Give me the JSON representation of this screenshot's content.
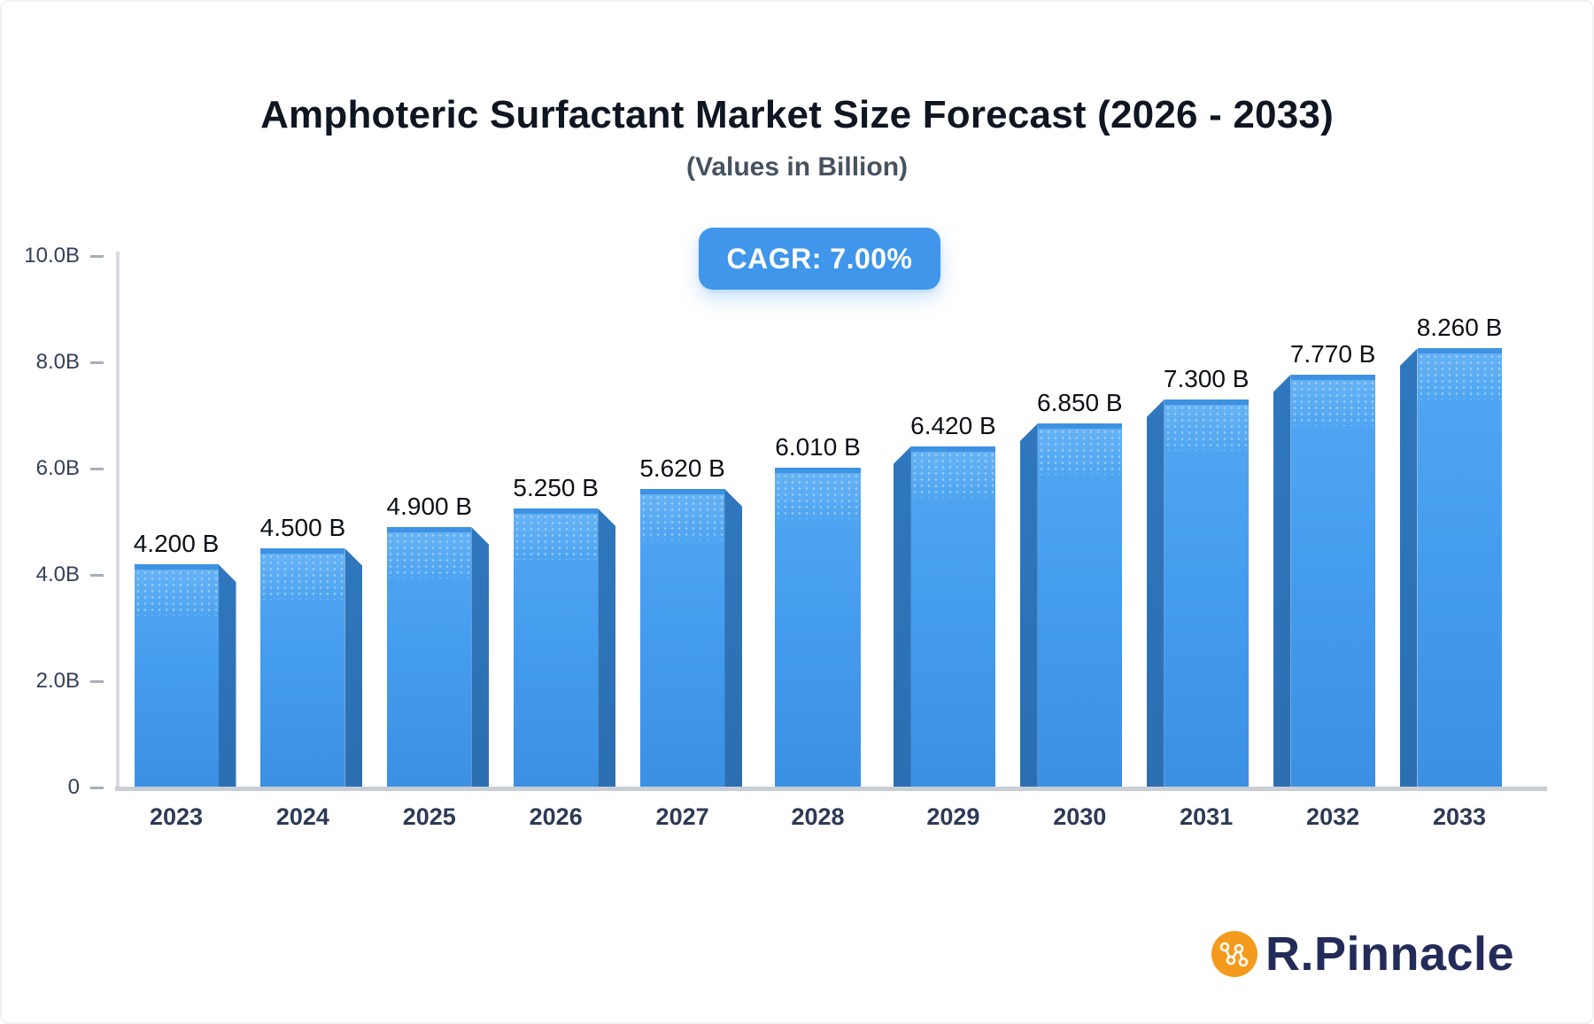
{
  "header": {
    "title": "Amphoteric Surfactant Market Size Forecast (2026 - 2033)",
    "subtitle": "(Values in Billion)",
    "cagr_label": "CAGR: 7.00%"
  },
  "chart_data": {
    "type": "bar",
    "style": "3d-perspective-bars",
    "title": "Amphoteric Surfactant Market Size Forecast (2026 - 2033)",
    "subtitle": "(Values in Billion)",
    "annotation": "CAGR: 7.00%",
    "unit": "Billion",
    "categories": [
      "2023",
      "2024",
      "2025",
      "2026",
      "2027",
      "2028",
      "2029",
      "2030",
      "2031",
      "2032",
      "2033"
    ],
    "values": [
      4.2,
      4.5,
      4.9,
      5.25,
      5.62,
      6.01,
      6.42,
      6.85,
      7.3,
      7.77,
      8.26
    ],
    "value_labels": [
      "4.200 B",
      "4.500 B",
      "4.900 B",
      "5.250 B",
      "5.620 B",
      "6.010 B",
      "6.420 B",
      "6.850 B",
      "7.300 B",
      "7.770 B",
      "8.260 B"
    ],
    "ylim": [
      0,
      10
    ],
    "yticks": [
      {
        "v": 10,
        "label": "10.0B"
      },
      {
        "v": 8,
        "label": "8.0B"
      },
      {
        "v": 6,
        "label": "6.0B"
      },
      {
        "v": 4,
        "label": "4.0B"
      },
      {
        "v": 2,
        "label": "2.0B"
      },
      {
        "v": 0,
        "label": "0"
      }
    ],
    "xlabel": "",
    "ylabel": "",
    "grid": false,
    "legend": false
  },
  "branding": {
    "name": "R.Pinnacle",
    "icon": "network-nodes-icon"
  },
  "theme": {
    "badge_bg": "#3F96EB",
    "bar_face": "#459DEF",
    "bar_face_light": "#53A8F2",
    "bar_face_deep": "#3B90E4",
    "bar_cap": "#3D92E2",
    "bar_side": "#2B6FB2",
    "bar_side_light": "#2F77BE",
    "axis_line": "#D7DBE1",
    "baseline": "#C9CED6",
    "tick": "#A9AFB9",
    "title_color": "#0F1621",
    "subtitle_color": "#47525F",
    "label_color": "#0C1117",
    "year_color": "#2C3A55",
    "ytick_color": "#33405A",
    "brand_text": "#232C59",
    "brand_orange": "#F49B1D"
  }
}
